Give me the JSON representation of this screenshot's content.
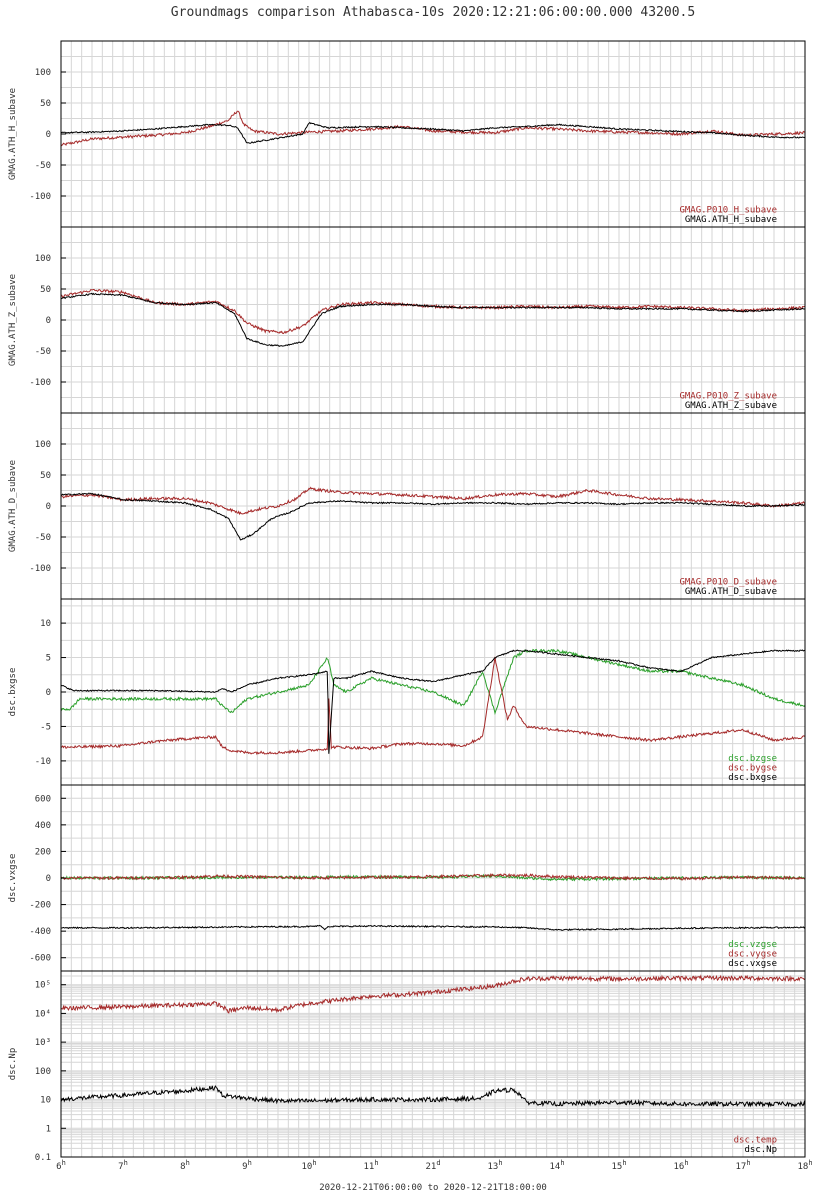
{
  "title": "Groundmags comparison Athabasca-10s 2020:12:21:06:00:00.000 43200.5",
  "xlabel": "2020-12-21T06:00:00 to 2020-12-21T18:00:00",
  "colors": {
    "black": "#000000",
    "red": "#a52a2a",
    "green": "#2ca02c",
    "grid": "#d6d6d6"
  },
  "chart_data": [
    {
      "type": "line",
      "ylabel": "GMAG.ATH_H_subave",
      "ylim": [
        -150,
        150
      ],
      "yticks": [
        -100,
        -50,
        0,
        50,
        100
      ],
      "series": [
        {
          "name": "GMAG.P010_H_subave",
          "color": "#a52a2a",
          "x": [
            6,
            6.5,
            7,
            7.5,
            8,
            8.4,
            8.7,
            8.85,
            8.95,
            9.1,
            9.5,
            10,
            10.5,
            11,
            11.5,
            12,
            12.5,
            13,
            13.5,
            14,
            14.5,
            15,
            15.5,
            16,
            16.5,
            17,
            17.5,
            18
          ],
          "y": [
            -18,
            -8,
            -5,
            -2,
            2,
            12,
            22,
            38,
            15,
            5,
            0,
            3,
            5,
            8,
            12,
            5,
            3,
            2,
            10,
            8,
            5,
            3,
            2,
            0,
            5,
            -2,
            0,
            2
          ]
        },
        {
          "name": "GMAG.ATH_H_subave",
          "color": "#000000",
          "x": [
            6,
            6.5,
            7,
            7.5,
            8,
            8.4,
            8.7,
            8.85,
            9.0,
            9.3,
            9.6,
            9.9,
            10.0,
            10.3,
            11,
            11.5,
            12,
            12.5,
            13,
            13.5,
            14,
            14.5,
            15,
            15.5,
            16,
            16.5,
            17,
            17.5,
            18
          ],
          "y": [
            2,
            3,
            5,
            8,
            12,
            15,
            14,
            10,
            -15,
            -10,
            -5,
            0,
            18,
            10,
            12,
            10,
            8,
            5,
            10,
            12,
            15,
            12,
            8,
            6,
            4,
            2,
            -2,
            -5,
            -6
          ]
        }
      ]
    },
    {
      "type": "line",
      "ylabel": "GMAG.ATH_Z_subave",
      "ylim": [
        -150,
        150
      ],
      "yticks": [
        -100,
        -50,
        0,
        50,
        100
      ],
      "series": [
        {
          "name": "GMAG.P010_Z_subave",
          "color": "#a52a2a",
          "x": [
            6,
            6.5,
            7,
            7.5,
            8,
            8.5,
            8.8,
            9,
            9.3,
            9.6,
            9.9,
            10.2,
            10.5,
            11,
            11.5,
            12,
            12.5,
            13,
            13.5,
            14,
            14.5,
            15,
            15.5,
            16,
            16.5,
            17,
            17.5,
            18
          ],
          "y": [
            38,
            48,
            45,
            28,
            25,
            30,
            15,
            -5,
            -18,
            -20,
            -10,
            15,
            25,
            28,
            25,
            22,
            20,
            20,
            22,
            20,
            22,
            20,
            22,
            20,
            18,
            15,
            18,
            20
          ]
        },
        {
          "name": "GMAG.ATH_Z_subave",
          "color": "#000000",
          "x": [
            6,
            6.5,
            7,
            7.5,
            8,
            8.5,
            8.8,
            9,
            9.3,
            9.6,
            9.9,
            10.2,
            10.5,
            11,
            11.5,
            12,
            12.5,
            13,
            13.5,
            14,
            14.5,
            15,
            15.5,
            16,
            16.5,
            17,
            17.5,
            18
          ],
          "y": [
            35,
            42,
            40,
            28,
            25,
            28,
            10,
            -30,
            -40,
            -42,
            -35,
            10,
            22,
            25,
            25,
            22,
            20,
            20,
            20,
            20,
            20,
            18,
            18,
            18,
            16,
            14,
            16,
            18
          ]
        }
      ]
    },
    {
      "type": "line",
      "ylabel": "GMAG.ATH_D_subave",
      "ylim": [
        -150,
        150
      ],
      "yticks": [
        -100,
        -50,
        0,
        50,
        100
      ],
      "series": [
        {
          "name": "GMAG.P010_D_subave",
          "color": "#a52a2a",
          "x": [
            6,
            6.5,
            7,
            7.5,
            8,
            8.4,
            8.7,
            8.9,
            9.2,
            9.5,
            9.8,
            10,
            10.5,
            11,
            11.5,
            12,
            12.5,
            13,
            13.5,
            14,
            14.5,
            15,
            15.5,
            16,
            16.5,
            17,
            17.5,
            18
          ],
          "y": [
            15,
            18,
            10,
            12,
            12,
            5,
            -5,
            -12,
            -5,
            0,
            12,
            28,
            22,
            20,
            18,
            15,
            12,
            18,
            20,
            15,
            25,
            18,
            12,
            10,
            8,
            5,
            0,
            5
          ]
        },
        {
          "name": "GMAG.ATH_D_subave",
          "color": "#000000",
          "x": [
            6,
            6.5,
            7,
            7.5,
            8,
            8.4,
            8.7,
            8.9,
            9.1,
            9.4,
            9.7,
            10,
            10.5,
            11,
            11.5,
            12,
            12.5,
            13,
            13.5,
            14,
            14.5,
            15,
            15.5,
            16,
            16.5,
            17,
            17.5,
            18
          ],
          "y": [
            18,
            20,
            10,
            8,
            5,
            -5,
            -20,
            -55,
            -45,
            -20,
            -10,
            5,
            8,
            5,
            5,
            3,
            5,
            5,
            3,
            5,
            5,
            3,
            5,
            5,
            3,
            0,
            0,
            2
          ]
        }
      ]
    },
    {
      "type": "line",
      "ylabel": "dsc.bxgse",
      "ylim": [
        -13.5,
        13.5
      ],
      "yticks": [
        -10,
        -5,
        0,
        5,
        10
      ],
      "series": [
        {
          "name": "dsc.bzgse",
          "color": "#2ca02c",
          "x": [
            6,
            6.15,
            6.3,
            7,
            7.5,
            8,
            8.5,
            8.6,
            8.75,
            9,
            9.5,
            10,
            10.3,
            10.4,
            10.6,
            11,
            11.5,
            12,
            12.5,
            12.8,
            13,
            13.3,
            13.5,
            14,
            14.5,
            15,
            15.5,
            16,
            16.5,
            17,
            17.5,
            18
          ],
          "y": [
            -2.5,
            -2.5,
            -1,
            -1,
            -1,
            -1,
            -1,
            -2,
            -3,
            -1,
            0,
            1,
            5,
            1,
            0,
            2,
            1,
            0,
            -2,
            3,
            -3,
            5,
            6,
            6,
            5,
            4,
            3,
            3,
            2,
            1,
            -1,
            -2
          ]
        },
        {
          "name": "dsc.bygse",
          "color": "#a52a2a",
          "x": [
            6,
            6.2,
            7,
            7.5,
            8,
            8.5,
            8.6,
            8.75,
            9,
            9.5,
            10,
            10.3,
            10.32,
            10.36,
            10.5,
            11,
            11.5,
            12,
            12.5,
            12.8,
            13,
            13.2,
            13.3,
            13.5,
            14,
            14.5,
            15,
            15.5,
            16,
            16.5,
            17,
            17.5,
            18
          ],
          "y": [
            -8,
            -8,
            -7.8,
            -7.2,
            -6.8,
            -6.5,
            -8,
            -8.5,
            -8.8,
            -8.8,
            -8.5,
            -8.2,
            -1,
            -8,
            -8,
            -8.2,
            -7.5,
            -7.5,
            -7.8,
            -6.5,
            5,
            -4,
            -2,
            -5,
            -5.5,
            -6,
            -6.5,
            -7,
            -6.5,
            -6,
            -5.5,
            -7,
            -6.5
          ]
        },
        {
          "name": "dsc.bxgse",
          "color": "#000000",
          "x": [
            6,
            6.2,
            7,
            7.5,
            8,
            8.5,
            8.6,
            8.75,
            9,
            9.5,
            10,
            10.3,
            10.32,
            10.4,
            10.6,
            11,
            11.5,
            12,
            12.5,
            12.8,
            13,
            13.3,
            13.5,
            14,
            14.5,
            15,
            15.5,
            16,
            16.5,
            17,
            17.5,
            18
          ],
          "y": [
            1,
            0.2,
            0.2,
            0.2,
            0.1,
            0,
            0.5,
            0,
            1,
            2,
            2.5,
            3,
            -9,
            2,
            2,
            3,
            2,
            1.5,
            2.5,
            3,
            5,
            6,
            6,
            5.5,
            5,
            4.5,
            3.5,
            3,
            5,
            5.5,
            6,
            6
          ]
        }
      ]
    },
    {
      "type": "line",
      "ylabel": "dsc.vxgse",
      "ylim": [
        -700,
        700
      ],
      "yticks": [
        -600,
        -400,
        -200,
        0,
        200,
        400,
        600
      ],
      "series": [
        {
          "name": "dsc.vzgse",
          "color": "#2ca02c",
          "x": [
            6,
            7,
            8,
            8.5,
            9,
            10,
            11,
            12,
            13,
            13.5,
            14,
            15,
            16,
            17,
            18
          ],
          "y": [
            0,
            0,
            2,
            5,
            5,
            5,
            10,
            5,
            15,
            0,
            -10,
            -5,
            0,
            5,
            0
          ]
        },
        {
          "name": "dsc.vygse",
          "color": "#a52a2a",
          "x": [
            6,
            7,
            8,
            8.5,
            9,
            10,
            11,
            12,
            13,
            13.5,
            14,
            15,
            16,
            17,
            18
          ],
          "y": [
            0,
            0,
            5,
            15,
            10,
            0,
            5,
            10,
            20,
            20,
            10,
            0,
            -5,
            5,
            0
          ]
        },
        {
          "name": "dsc.vxgse",
          "color": "#000000",
          "x": [
            6,
            7,
            8,
            8.5,
            9,
            10,
            10.2,
            10.25,
            10.3,
            11,
            12,
            13,
            13.5,
            14,
            15,
            16,
            17,
            18
          ],
          "y": [
            -375,
            -375,
            -372,
            -370,
            -368,
            -365,
            -360,
            -390,
            -365,
            -362,
            -365,
            -368,
            -375,
            -390,
            -385,
            -378,
            -375,
            -372
          ]
        }
      ]
    },
    {
      "type": "line",
      "ylabel": "dsc.Np",
      "yscale": "log",
      "ylim": [
        0.1,
        300000
      ],
      "yticks": [
        0.1,
        1,
        10,
        100,
        1000,
        10000,
        100000
      ],
      "ytick_labels": [
        "0.1",
        "1",
        "10",
        "100",
        "10³",
        "10⁴",
        "10⁵"
      ],
      "series": [
        {
          "name": "dsc.temp",
          "color": "#a52a2a",
          "x": [
            6,
            7,
            8,
            8.5,
            8.7,
            9,
            9.5,
            10,
            10.5,
            11,
            11.5,
            12,
            12.5,
            13,
            13.5,
            14,
            15,
            16,
            17,
            18
          ],
          "y": [
            15000,
            17000,
            20000,
            22000,
            12000,
            16000,
            13000,
            22000,
            30000,
            40000,
            45000,
            55000,
            70000,
            90000,
            160000,
            170000,
            160000,
            170000,
            170000,
            160000
          ]
        },
        {
          "name": "dsc.Np",
          "color": "#000000",
          "x": [
            6,
            7,
            8,
            8.5,
            8.6,
            9,
            9.5,
            10,
            11,
            12,
            12.8,
            13,
            13.3,
            13.5,
            14,
            15,
            16,
            17,
            18
          ],
          "y": [
            10,
            14,
            20,
            26,
            14,
            11,
            9,
            9,
            10,
            10,
            11,
            20,
            22,
            8,
            7,
            8,
            7,
            7,
            7
          ]
        }
      ]
    }
  ],
  "xaxis": {
    "range": [
      6,
      18
    ],
    "ticks": [
      {
        "x": 6,
        "label": "6",
        "sup": "h"
      },
      {
        "x": 7,
        "label": "7",
        "sup": "h"
      },
      {
        "x": 8,
        "label": "8",
        "sup": "h"
      },
      {
        "x": 9,
        "label": "9",
        "sup": "h"
      },
      {
        "x": 10,
        "label": "10",
        "sup": "h"
      },
      {
        "x": 11,
        "label": "11",
        "sup": "h"
      },
      {
        "x": 12,
        "label": "21",
        "sup": "d"
      },
      {
        "x": 13,
        "label": "13",
        "sup": "h"
      },
      {
        "x": 14,
        "label": "14",
        "sup": "h"
      },
      {
        "x": 15,
        "label": "15",
        "sup": "h"
      },
      {
        "x": 16,
        "label": "16",
        "sup": "h"
      },
      {
        "x": 17,
        "label": "17",
        "sup": "h"
      },
      {
        "x": 18,
        "label": "18",
        "sup": "h"
      }
    ]
  }
}
